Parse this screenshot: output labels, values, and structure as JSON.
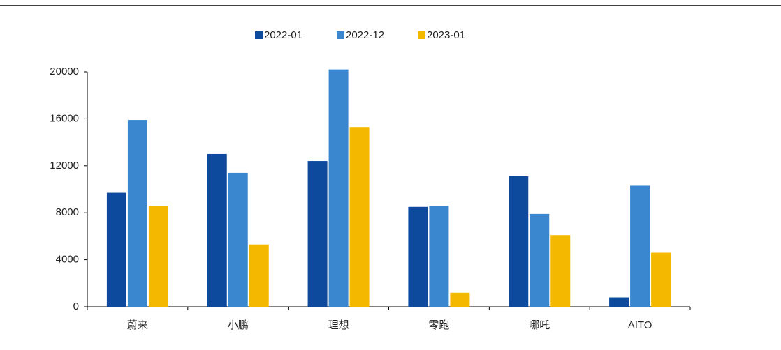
{
  "chart_data": {
    "type": "bar",
    "categories": [
      "蔚来",
      "小鹏",
      "理想",
      "零跑",
      "哪吒",
      "AITO"
    ],
    "series": [
      {
        "name": "2022-01",
        "color": "#0d4a9e",
        "values": [
          9700,
          13000,
          12400,
          8500,
          11100,
          800
        ]
      },
      {
        "name": "2022-12",
        "color": "#3a87d0",
        "values": [
          15900,
          11400,
          20200,
          8600,
          7900,
          10300
        ]
      },
      {
        "name": "2023-01",
        "color": "#f5b800",
        "values": [
          8600,
          5300,
          15300,
          1200,
          6100,
          4600
        ]
      }
    ],
    "ylim": [
      0,
      20000
    ],
    "yticks": [
      0,
      4000,
      8000,
      12000,
      16000,
      20000
    ],
    "grid": false
  }
}
